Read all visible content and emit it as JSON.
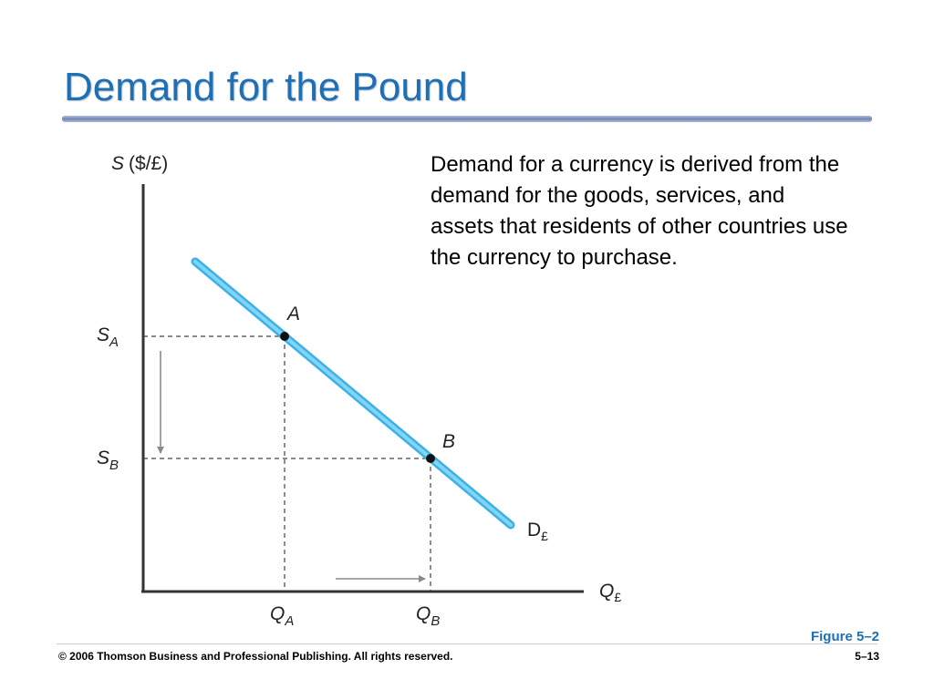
{
  "slide": {
    "title": "Demand for the Pound",
    "description": "Demand for a currency is derived from the demand for the goods, services, and assets that residents of other countries use the currency to purchase.",
    "figure_caption": "Figure 5–2",
    "copyright": "© 2006 Thomson Business and Professional Publishing. All rights reserved.",
    "page_number": "5–13"
  },
  "diagram": {
    "y_axis": {
      "var": "S",
      "unit": "($/£)"
    },
    "x_axis": {
      "var": "Q",
      "sub": "£"
    },
    "curve": {
      "var": "D",
      "sub": "£",
      "color": "#5bc8f0"
    },
    "points": [
      {
        "id": "A",
        "label": "A"
      },
      {
        "id": "B",
        "label": "B"
      }
    ],
    "y_ticks": [
      {
        "var": "S",
        "sub": "A"
      },
      {
        "var": "S",
        "sub": "B"
      }
    ],
    "x_ticks": [
      {
        "var": "Q",
        "sub": "A"
      },
      {
        "var": "Q",
        "sub": "B"
      }
    ]
  }
}
